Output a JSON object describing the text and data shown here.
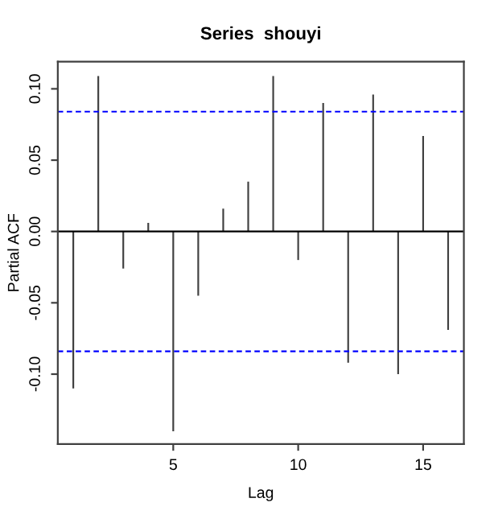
{
  "chart_data": {
    "type": "bar",
    "title": "Series  shouyi",
    "xlabel": "Lag",
    "ylabel": "Partial ACF",
    "x": [
      1,
      2,
      3,
      4,
      5,
      6,
      7,
      8,
      9,
      10,
      11,
      12,
      13,
      14,
      15,
      16
    ],
    "values": [
      -0.11,
      0.109,
      -0.026,
      0.006,
      -0.14,
      -0.045,
      0.016,
      0.035,
      0.109,
      -0.02,
      0.09,
      -0.092,
      0.096,
      -0.1,
      0.067,
      -0.069
    ],
    "color": "#404040",
    "xlim": [
      0.38,
      16.63
    ],
    "ylim": [
      -0.149,
      0.119
    ],
    "xticks": [
      5,
      10,
      15
    ],
    "yticks": [
      {
        "value": -0.1,
        "label": "-0.10"
      },
      {
        "value": -0.05,
        "label": "-0.05"
      },
      {
        "value": 0,
        "label": "0.00"
      },
      {
        "value": 0.05,
        "label": "0.05"
      },
      {
        "value": 0.1,
        "label": "0.10"
      }
    ],
    "ref_lines": [
      {
        "axis": "y",
        "value": 0,
        "color": "#000000",
        "line_style": "solid"
      },
      {
        "axis": "y",
        "value": 0.084,
        "color": "#0000ff",
        "line_style": "dashed"
      },
      {
        "axis": "y",
        "value": -0.084,
        "color": "#0000ff",
        "line_style": "dashed"
      }
    ],
    "grid": false
  }
}
